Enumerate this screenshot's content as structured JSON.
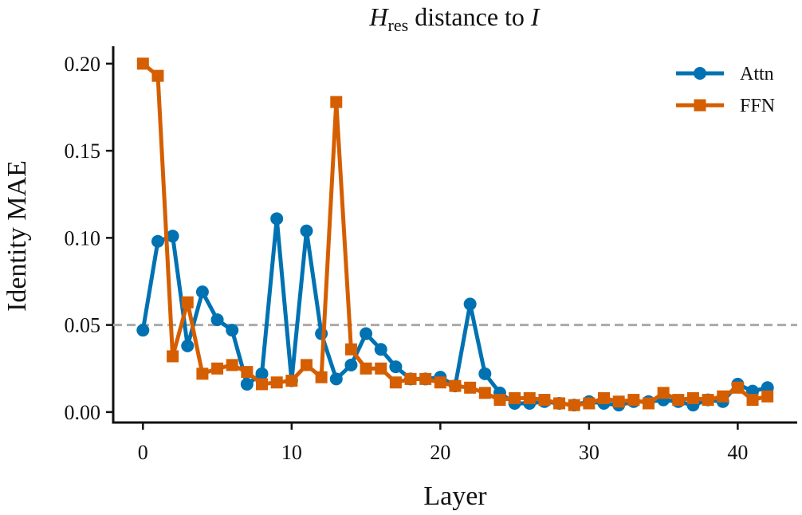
{
  "chart_data": {
    "type": "line",
    "title": {
      "main": "H",
      "sub": "res",
      "rest": " distance to ",
      "italic_tail": "I"
    },
    "xlabel": "Layer",
    "ylabel": "Identity MAE",
    "xlim": [
      -2,
      44
    ],
    "ylim": [
      -0.006,
      0.21
    ],
    "xticks": [
      0,
      10,
      20,
      30,
      40
    ],
    "xtick_labels": [
      "0",
      "10",
      "20",
      "30",
      "40"
    ],
    "yticks": [
      0.0,
      0.05,
      0.1,
      0.15,
      0.2
    ],
    "ytick_labels": [
      "0.00",
      "0.05",
      "0.10",
      "0.15",
      "0.20"
    ],
    "grid": false,
    "legend_position": "top-right",
    "reference_line": {
      "y": 0.05,
      "style": "dashed",
      "color": "#aaaaaa"
    },
    "x": [
      0,
      1,
      2,
      3,
      4,
      5,
      6,
      7,
      8,
      9,
      10,
      11,
      12,
      13,
      14,
      15,
      16,
      17,
      18,
      19,
      20,
      21,
      22,
      23,
      24,
      25,
      26,
      27,
      28,
      29,
      30,
      31,
      32,
      33,
      34,
      35,
      36,
      37,
      38,
      39,
      40,
      41,
      42
    ],
    "series": [
      {
        "name": "Attn",
        "color": "#0072b2",
        "marker": "circle",
        "values": [
          0.047,
          0.098,
          0.101,
          0.038,
          0.069,
          0.053,
          0.047,
          0.016,
          0.022,
          0.111,
          0.018,
          0.104,
          0.045,
          0.019,
          0.027,
          0.045,
          0.036,
          0.026,
          0.019,
          0.019,
          0.02,
          0.015,
          0.062,
          0.022,
          0.011,
          0.005,
          0.005,
          0.006,
          0.005,
          0.004,
          0.006,
          0.005,
          0.004,
          0.006,
          0.006,
          0.007,
          0.006,
          0.004,
          0.007,
          0.006,
          0.016,
          0.012,
          0.014
        ]
      },
      {
        "name": "FFN",
        "color": "#d55e00",
        "marker": "square",
        "values": [
          0.2,
          0.193,
          0.032,
          0.063,
          0.022,
          0.025,
          0.027,
          0.023,
          0.016,
          0.017,
          0.018,
          0.027,
          0.02,
          0.178,
          0.036,
          0.025,
          0.025,
          0.017,
          0.019,
          0.019,
          0.017,
          0.015,
          0.014,
          0.011,
          0.007,
          0.008,
          0.008,
          0.007,
          0.005,
          0.004,
          0.005,
          0.008,
          0.006,
          0.007,
          0.005,
          0.011,
          0.007,
          0.008,
          0.007,
          0.009,
          0.014,
          0.007,
          0.009
        ]
      }
    ]
  }
}
